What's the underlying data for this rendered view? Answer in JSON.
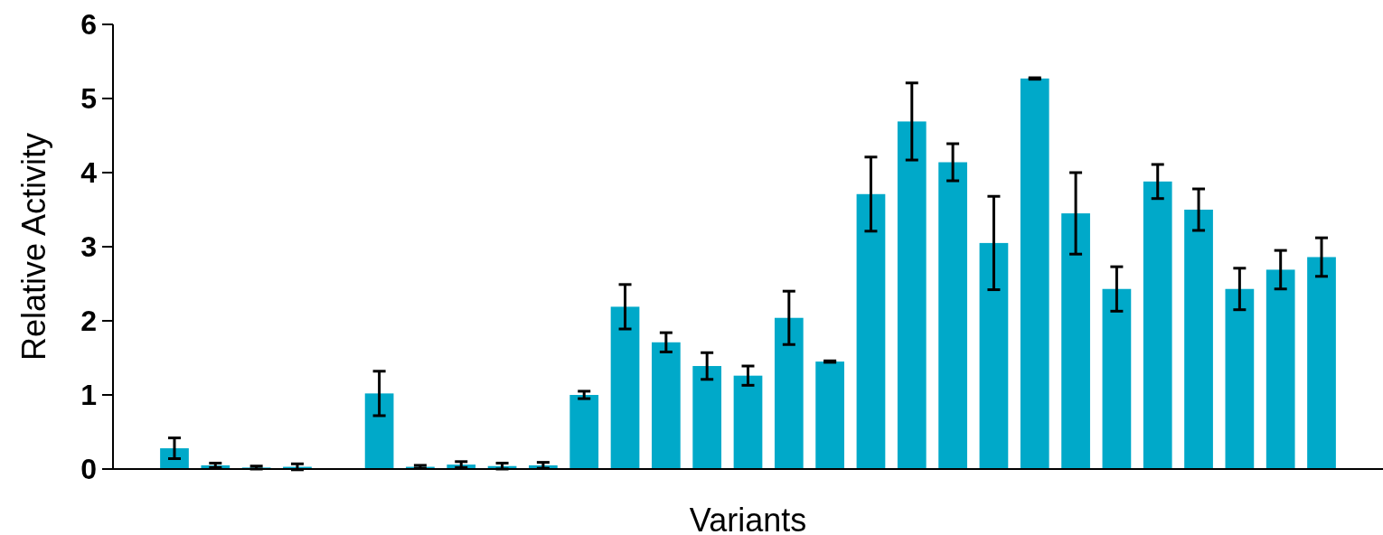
{
  "chart_data": {
    "type": "bar",
    "xlabel": "Variants",
    "ylabel": "Relative Activity",
    "categories": [
      null,
      null,
      null,
      null,
      null,
      null,
      null,
      null,
      null,
      null,
      null,
      null,
      null,
      null,
      null,
      null,
      null,
      null,
      null,
      null,
      null,
      null,
      null,
      null,
      null,
      null,
      null,
      null,
      null,
      null,
      null
    ],
    "values": [
      null,
      0.28,
      0.05,
      0.02,
      0.03,
      null,
      1.02,
      0.03,
      0.06,
      0.04,
      0.05,
      1.0,
      2.19,
      1.71,
      1.39,
      1.26,
      2.04,
      1.45,
      3.71,
      4.69,
      4.14,
      3.05,
      5.27,
      3.45,
      2.43,
      3.88,
      3.5,
      2.43,
      2.69,
      2.86,
      null
    ],
    "errors": [
      null,
      0.14,
      0.03,
      0.02,
      0.04,
      null,
      0.3,
      0.02,
      0.04,
      0.04,
      0.04,
      0.05,
      0.3,
      0.13,
      0.18,
      0.13,
      0.36,
      0.01,
      0.5,
      0.52,
      0.25,
      0.63,
      0.01,
      0.55,
      0.3,
      0.23,
      0.28,
      0.28,
      0.26,
      0.26,
      null
    ],
    "color": "#00a9c9",
    "ylim": [
      0,
      6
    ],
    "yticks": [
      0,
      1,
      2,
      3,
      4,
      5,
      6
    ],
    "grid": false
  }
}
